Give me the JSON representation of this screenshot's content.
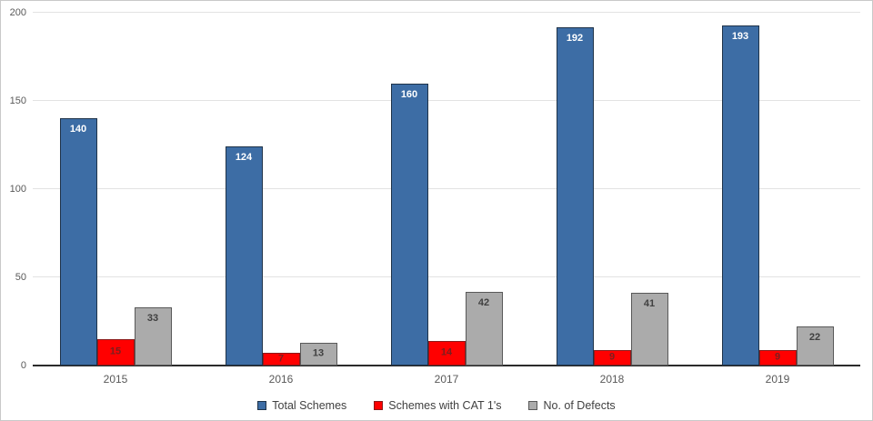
{
  "chart_data": {
    "type": "bar",
    "title": "",
    "xlabel": "",
    "ylabel": "",
    "categories": [
      "2015",
      "2016",
      "2017",
      "2018",
      "2019"
    ],
    "series": [
      {
        "name": "Total Schemes",
        "values": [
          140,
          124,
          160,
          192,
          193
        ],
        "fill": "#3D6DA5",
        "border": "#1F3349",
        "label_color": "#FFFFFF"
      },
      {
        "name": "Schemes with CAT 1's",
        "values": [
          15,
          7,
          14,
          9,
          9
        ],
        "fill": "#FF0000",
        "border": "#8B1A1A",
        "label_color": "#7A1F1F"
      },
      {
        "name": "No. of Defects",
        "values": [
          33,
          13,
          42,
          41,
          22
        ],
        "fill": "#ABABAB",
        "border": "#595959",
        "label_color": "#404040"
      }
    ],
    "ylim": [
      0,
      200
    ],
    "yticks": [
      0,
      50,
      100,
      150,
      200
    ],
    "grid": true,
    "legend_position": "bottom",
    "tick_color": "#595959",
    "gridline_color": "#E2E2E2",
    "axis_line_color": "#2B2B2B"
  }
}
